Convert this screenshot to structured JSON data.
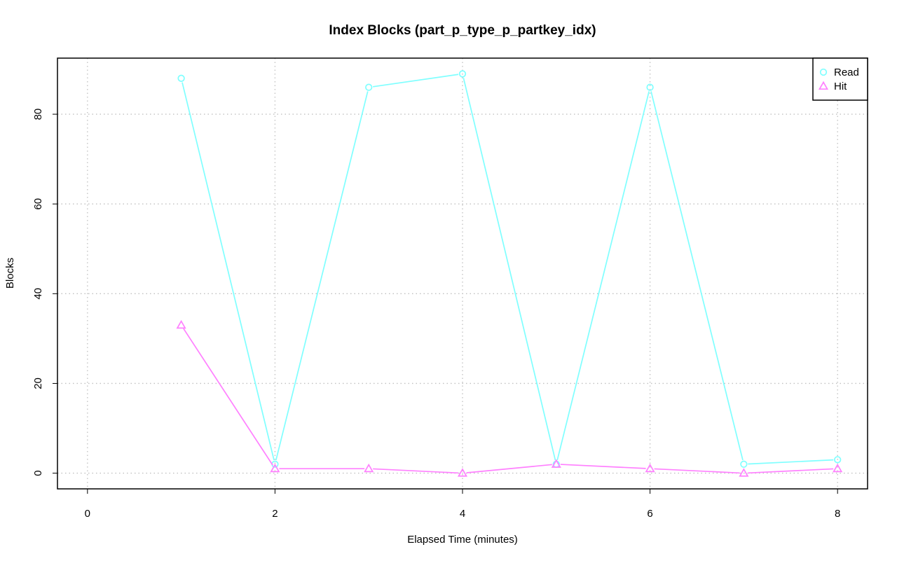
{
  "chart_data": {
    "type": "line",
    "title": "Index Blocks (part_p_type_p_partkey_idx)",
    "xlabel": "Elapsed Time (minutes)",
    "ylabel": "Blocks",
    "xlim": [
      -0.32,
      8.32
    ],
    "ylim": [
      -3.5,
      92.5
    ],
    "x_ticks": [
      0,
      2,
      4,
      6,
      8
    ],
    "y_ticks": [
      0,
      20,
      40,
      60,
      80
    ],
    "grid": true,
    "legend_position": "top-right",
    "series": [
      {
        "name": "Read",
        "color": "#80FFFF",
        "marker": "circle",
        "x": [
          1,
          2,
          3,
          4,
          5,
          6,
          7,
          8
        ],
        "values": [
          88,
          2,
          86,
          89,
          2,
          86,
          2,
          3
        ]
      },
      {
        "name": "Hit",
        "color": "#FF80FF",
        "marker": "triangle",
        "x": [
          1,
          2,
          3,
          4,
          5,
          6,
          7,
          8
        ],
        "values": [
          33,
          1,
          1,
          0,
          2,
          1,
          0,
          1
        ]
      }
    ]
  }
}
